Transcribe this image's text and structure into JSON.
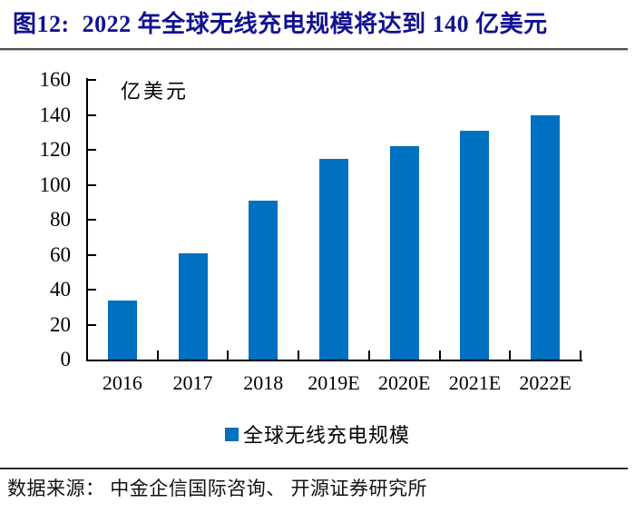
{
  "figure": {
    "title": "图12:  2022 年全球无线充电规模将达到 140 亿美元",
    "title_color": "#121290",
    "source": "数据来源： 中金企信国际咨询、 开源证券研究所"
  },
  "chart_data": {
    "type": "bar",
    "title": "2022 年全球无线充电规模将达到 140 亿美元",
    "unit_label": "亿美元",
    "categories": [
      "2016",
      "2017",
      "2018",
      "2019E",
      "2020E",
      "2021E",
      "2022E"
    ],
    "values": [
      34,
      61,
      91,
      115,
      122,
      131,
      140
    ],
    "series_name": "全球无线充电规模",
    "ylim": [
      0,
      160
    ],
    "yticks": [
      0,
      20,
      40,
      60,
      80,
      100,
      120,
      140,
      160
    ],
    "bar_color": "#0070C0",
    "axis_color": "#000000",
    "grid": false,
    "legend_position": "bottom"
  }
}
